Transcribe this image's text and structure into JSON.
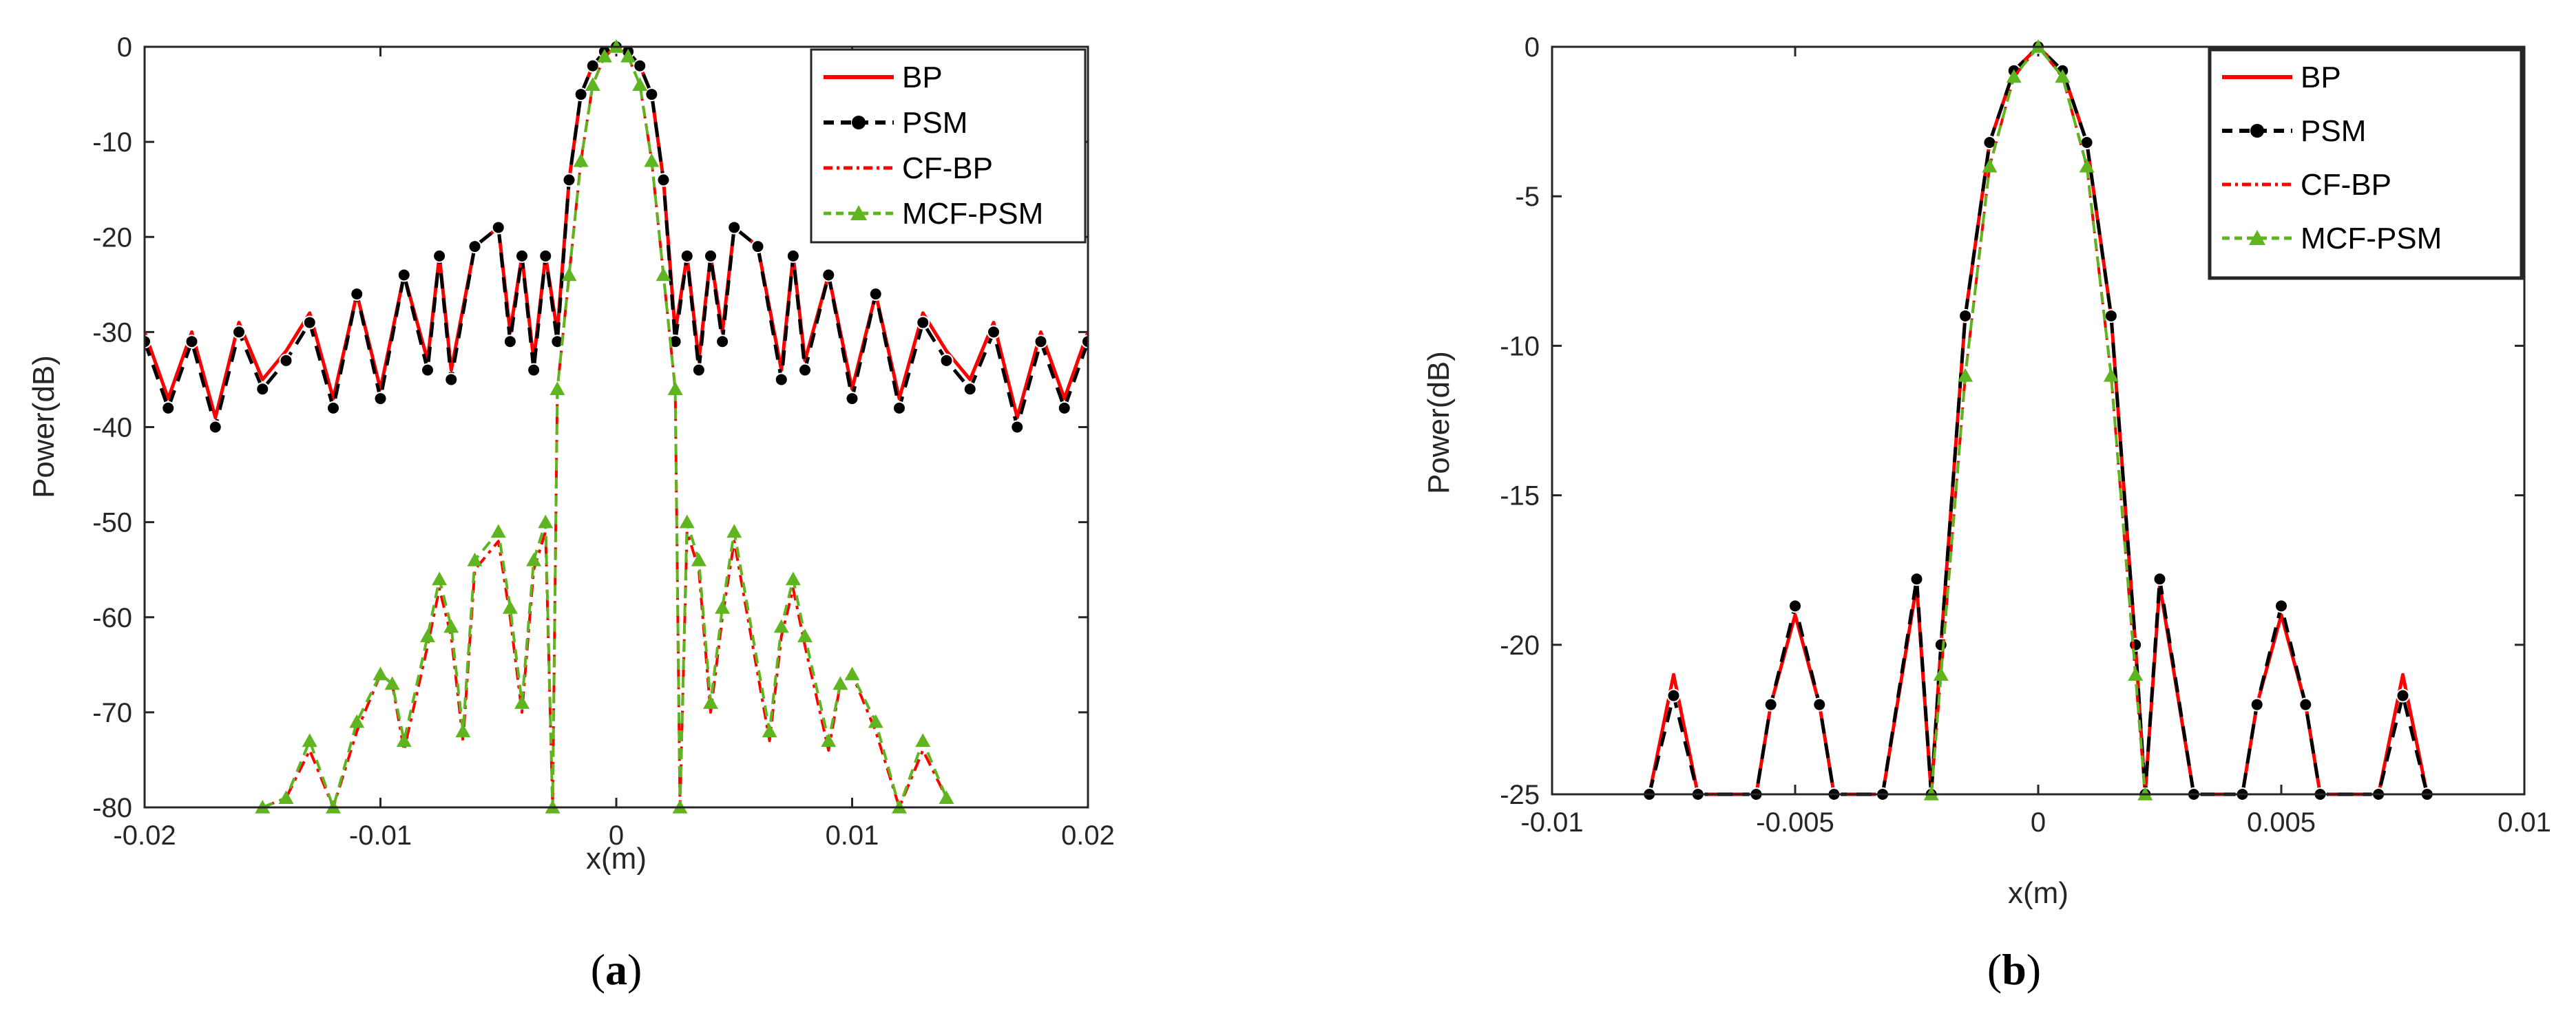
{
  "figure": {
    "panels": [
      {
        "caption": {
          "open": "(",
          "letter": "a",
          "close": ")"
        }
      },
      {
        "caption": {
          "open": "(",
          "letter": "b",
          "close": ")"
        }
      }
    ]
  },
  "colors": {
    "bp": "#ff0000",
    "psm": "#000000",
    "cfbp": "#ff0000",
    "mcfpsm": "#5fb51f",
    "axis": "#262626"
  },
  "chart_data": [
    {
      "type": "line",
      "xlabel": "x(m)",
      "ylabel": "Power(dB)",
      "xlim": [
        -0.02,
        0.02
      ],
      "ylim": [
        -80,
        0
      ],
      "xticks": [
        -0.02,
        -0.01,
        0,
        0.01,
        0.02
      ],
      "xtick_labels": [
        "-0.02",
        "-0.01",
        "0",
        "0.01",
        "0.02"
      ],
      "yticks": [
        0,
        -10,
        -20,
        -30,
        -40,
        -50,
        -60,
        -70,
        -80
      ],
      "ytick_labels": [
        "0",
        "-10",
        "-20",
        "-30",
        "-40",
        "-50",
        "-60",
        "-70",
        "-80"
      ],
      "legend_position": "top-right",
      "legend": [
        "BP",
        "PSM",
        "CF-BP",
        "MCF-PSM"
      ],
      "series": [
        {
          "name": "BP",
          "x": [
            -0.02,
            -0.019,
            -0.018,
            -0.017,
            -0.016,
            -0.015,
            -0.014,
            -0.013,
            -0.012,
            -0.011,
            -0.01,
            -0.009,
            -0.008,
            -0.0075,
            -0.007,
            -0.006,
            -0.005,
            -0.0045,
            -0.004,
            -0.0035,
            -0.003,
            -0.0025,
            -0.002,
            -0.0015,
            -0.001,
            -0.0005,
            0,
            0.0005,
            0.001,
            0.0015,
            0.002,
            0.0025,
            0.003,
            0.0035,
            0.004,
            0.0045,
            0.005,
            0.006,
            0.007,
            0.0075,
            0.008,
            0.009,
            0.01,
            0.011,
            0.012,
            0.013,
            0.014,
            0.015,
            0.016,
            0.017,
            0.018,
            0.019,
            0.02
          ],
          "values": [
            -30,
            -37,
            -30,
            -39,
            -29,
            -35,
            -32,
            -28,
            -37,
            -26,
            -36,
            -24,
            -33,
            -22,
            -34,
            -21,
            -19,
            -30,
            -22,
            -33,
            -22,
            -30,
            -14,
            -5,
            -2,
            -0.5,
            0,
            -0.5,
            -2,
            -5,
            -14,
            -30,
            -22,
            -33,
            -22,
            -30,
            -19,
            -21,
            -34,
            -22,
            -33,
            -24,
            -36,
            -26,
            -37,
            -28,
            -32,
            -35,
            -29,
            -39,
            -30,
            -37,
            -30
          ]
        },
        {
          "name": "PSM",
          "x": [
            -0.02,
            -0.019,
            -0.018,
            -0.017,
            -0.016,
            -0.015,
            -0.014,
            -0.013,
            -0.012,
            -0.011,
            -0.01,
            -0.009,
            -0.008,
            -0.0075,
            -0.007,
            -0.006,
            -0.005,
            -0.0045,
            -0.004,
            -0.0035,
            -0.003,
            -0.0025,
            -0.002,
            -0.0015,
            -0.001,
            -0.0005,
            0,
            0.0005,
            0.001,
            0.0015,
            0.002,
            0.0025,
            0.003,
            0.0035,
            0.004,
            0.0045,
            0.005,
            0.006,
            0.007,
            0.0075,
            0.008,
            0.009,
            0.01,
            0.011,
            0.012,
            0.013,
            0.014,
            0.015,
            0.016,
            0.017,
            0.018,
            0.019,
            0.02
          ],
          "values": [
            -31,
            -38,
            -31,
            -40,
            -30,
            -36,
            -33,
            -29,
            -38,
            -26,
            -37,
            -24,
            -34,
            -22,
            -35,
            -21,
            -19,
            -31,
            -22,
            -34,
            -22,
            -31,
            -14,
            -5,
            -2,
            -0.5,
            0,
            -0.5,
            -2,
            -5,
            -14,
            -31,
            -22,
            -34,
            -22,
            -31,
            -19,
            -21,
            -35,
            -22,
            -34,
            -24,
            -37,
            -26,
            -38,
            -29,
            -33,
            -36,
            -30,
            -40,
            -31,
            -38,
            -31
          ]
        },
        {
          "name": "CF-BP",
          "x": [
            -0.015,
            -0.014,
            -0.013,
            -0.012,
            -0.011,
            -0.01,
            -0.0095,
            -0.009,
            -0.008,
            -0.0075,
            -0.007,
            -0.0065,
            -0.006,
            -0.005,
            -0.0045,
            -0.004,
            -0.0035,
            -0.003,
            -0.0027,
            -0.0025,
            -0.002,
            -0.0015,
            -0.001,
            -0.0005,
            0,
            0.0005,
            0.001,
            0.0015,
            0.002,
            0.0025,
            0.0027,
            0.003,
            0.0035,
            0.004,
            0.0045,
            0.005,
            0.0065,
            0.007,
            0.0075,
            0.008,
            0.009,
            0.0095,
            0.01,
            0.011,
            0.012,
            0.013,
            0.014
          ],
          "values": [
            -80,
            -79,
            -74,
            -80,
            -72,
            -66,
            -67,
            -74,
            -63,
            -57,
            -62,
            -73,
            -55,
            -52,
            -60,
            -70,
            -55,
            -51,
            -80,
            -36,
            -24,
            -12,
            -4,
            -1,
            0,
            -1,
            -4,
            -12,
            -24,
            -36,
            -80,
            -51,
            -55,
            -70,
            -60,
            -52,
            -73,
            -62,
            -57,
            -63,
            -74,
            -67,
            -66,
            -72,
            -80,
            -74,
            -79
          ]
        },
        {
          "name": "MCF-PSM",
          "x": [
            -0.015,
            -0.014,
            -0.013,
            -0.012,
            -0.011,
            -0.01,
            -0.0095,
            -0.009,
            -0.008,
            -0.0075,
            -0.007,
            -0.0065,
            -0.006,
            -0.005,
            -0.0045,
            -0.004,
            -0.0035,
            -0.003,
            -0.0027,
            -0.0025,
            -0.002,
            -0.0015,
            -0.001,
            -0.0005,
            0,
            0.0005,
            0.001,
            0.0015,
            0.002,
            0.0025,
            0.0027,
            0.003,
            0.0035,
            0.004,
            0.0045,
            0.005,
            0.0065,
            0.007,
            0.0075,
            0.008,
            0.009,
            0.0095,
            0.01,
            0.011,
            0.012,
            0.013,
            0.014
          ],
          "values": [
            -80,
            -79,
            -73,
            -80,
            -71,
            -66,
            -67,
            -73,
            -62,
            -56,
            -61,
            -72,
            -54,
            -51,
            -59,
            -69,
            -54,
            -50,
            -80,
            -36,
            -24,
            -12,
            -4,
            -1,
            0,
            -1,
            -4,
            -12,
            -24,
            -36,
            -80,
            -50,
            -54,
            -69,
            -59,
            -51,
            -72,
            -61,
            -56,
            -62,
            -73,
            -67,
            -66,
            -71,
            -80,
            -73,
            -79
          ]
        }
      ]
    },
    {
      "type": "line",
      "xlabel": "x(m)",
      "ylabel": "Power(dB)",
      "xlim": [
        -0.01,
        0.01
      ],
      "ylim": [
        -25,
        0
      ],
      "xticks": [
        -0.01,
        -0.005,
        0,
        0.005,
        0.01
      ],
      "xtick_labels": [
        "-0.01",
        "-0.005",
        "0",
        "0.005",
        "0.01"
      ],
      "yticks": [
        0,
        -5,
        -10,
        -15,
        -20,
        -25
      ],
      "ytick_labels": [
        "0",
        "-5",
        "-10",
        "-15",
        "-20",
        "-25"
      ],
      "legend_position": "top-right",
      "legend": [
        "BP",
        "PSM",
        "CF-BP",
        "MCF-PSM"
      ],
      "series": [
        {
          "name": "BP",
          "x": [
            -0.008,
            -0.0075,
            -0.007,
            -0.0058,
            -0.0055,
            -0.005,
            -0.0045,
            -0.0042,
            -0.0032,
            -0.0025,
            -0.0022,
            -0.002,
            -0.0015,
            -0.001,
            -0.0005,
            0,
            0.0005,
            0.001,
            0.0015,
            0.002,
            0.0022,
            0.0025,
            0.0032,
            0.0042,
            0.0045,
            0.005,
            0.0055,
            0.0058,
            0.007,
            0.0075,
            0.008
          ],
          "values": [
            -25,
            -21,
            -25,
            -25,
            -22,
            -19,
            -22,
            -25,
            -25,
            -18,
            -25,
            -20,
            -9,
            -3.2,
            -0.8,
            0,
            -0.8,
            -3.2,
            -9,
            -20,
            -25,
            -18,
            -25,
            -25,
            -22,
            -19,
            -22,
            -25,
            -25,
            -21,
            -25
          ]
        },
        {
          "name": "PSM",
          "x": [
            -0.008,
            -0.0075,
            -0.007,
            -0.0058,
            -0.0055,
            -0.005,
            -0.0045,
            -0.0042,
            -0.0032,
            -0.0025,
            -0.0022,
            -0.002,
            -0.0015,
            -0.001,
            -0.0005,
            0,
            0.0005,
            0.001,
            0.0015,
            0.002,
            0.0022,
            0.0025,
            0.0032,
            0.0042,
            0.0045,
            0.005,
            0.0055,
            0.0058,
            0.007,
            0.0075,
            0.008
          ],
          "values": [
            -25,
            -21.7,
            -25,
            -25,
            -22,
            -18.7,
            -22,
            -25,
            -25,
            -17.8,
            -25,
            -20,
            -9,
            -3.2,
            -0.8,
            0,
            -0.8,
            -3.2,
            -9,
            -20,
            -25,
            -17.8,
            -25,
            -25,
            -22,
            -18.7,
            -22,
            -25,
            -25,
            -21.7,
            -25
          ]
        },
        {
          "name": "CF-BP",
          "x": [
            -0.0022,
            -0.002,
            -0.0015,
            -0.001,
            -0.0005,
            0,
            0.0005,
            0.001,
            0.0015,
            0.002,
            0.0022
          ],
          "values": [
            -25,
            -21,
            -11,
            -4,
            -1,
            0,
            -1,
            -4,
            -11,
            -21,
            -25
          ]
        },
        {
          "name": "MCF-PSM",
          "x": [
            -0.0022,
            -0.002,
            -0.0015,
            -0.001,
            -0.0005,
            0,
            0.0005,
            0.001,
            0.0015,
            0.002,
            0.0022
          ],
          "values": [
            -25,
            -21,
            -11,
            -4,
            -1,
            0,
            -1,
            -4,
            -11,
            -21,
            -25
          ]
        }
      ]
    }
  ]
}
